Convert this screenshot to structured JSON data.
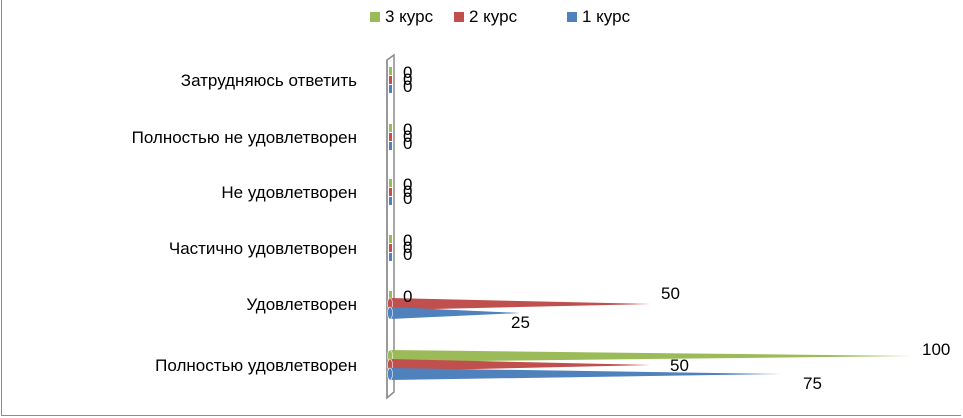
{
  "chart_data": {
    "type": "bar",
    "orientation": "horizontal",
    "style": "3d-cone",
    "categories": [
      "Полностью удовлетворен",
      "Удовлетворен",
      "Частично удовлетворен",
      "Не удовлетворен",
      "Полностью не удовлетворен",
      "Затрудняюсь ответить"
    ],
    "series": [
      {
        "name": "1 курс",
        "color": "#4f81bd",
        "values": [
          75,
          25,
          0,
          0,
          0,
          0
        ]
      },
      {
        "name": "2 курс",
        "color": "#c0504d",
        "values": [
          50,
          50,
          0,
          0,
          0,
          0
        ]
      },
      {
        "name": "3 курс",
        "color": "#9bbb59",
        "values": [
          100,
          0,
          0,
          0,
          0,
          0
        ]
      }
    ],
    "xlim": [
      0,
      100
    ],
    "legend": "top-center",
    "grid": false,
    "title": "",
    "xlabel": "",
    "ylabel": ""
  }
}
